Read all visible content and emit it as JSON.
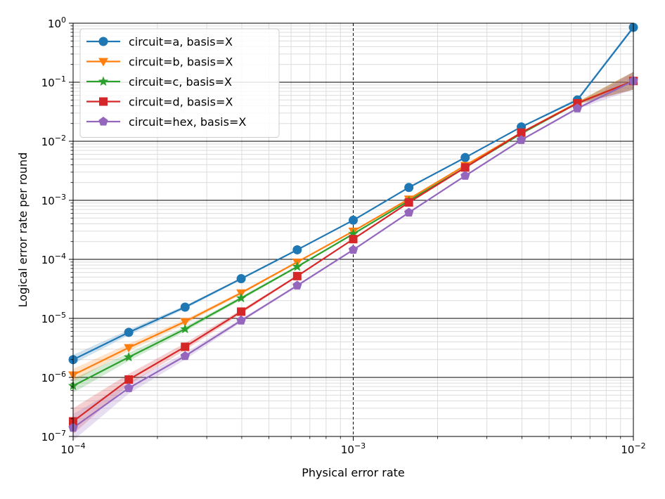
{
  "chart_data": {
    "type": "line",
    "xlabel": "Physical error rate",
    "ylabel": "Logical error rate per round",
    "x_scale": "log",
    "y_scale": "log",
    "xlim": [
      0.0001,
      0.01
    ],
    "ylim": [
      1e-07,
      1
    ],
    "x_major_ticks": [
      {
        "value": 0.0001,
        "base": "10",
        "exp": "−4"
      },
      {
        "value": 0.001,
        "base": "10",
        "exp": "−3"
      },
      {
        "value": 0.01,
        "base": "10",
        "exp": "−2"
      }
    ],
    "y_major_ticks": [
      {
        "value": 1e-07,
        "base": "10",
        "exp": "−7"
      },
      {
        "value": 1e-06,
        "base": "10",
        "exp": "−6"
      },
      {
        "value": 1e-05,
        "base": "10",
        "exp": "−5"
      },
      {
        "value": 0.0001,
        "base": "10",
        "exp": "−4"
      },
      {
        "value": 0.001,
        "base": "10",
        "exp": "−3"
      },
      {
        "value": 0.01,
        "base": "10",
        "exp": "−2"
      },
      {
        "value": 0.1,
        "base": "10",
        "exp": "−1"
      },
      {
        "value": 1,
        "base": "10",
        "exp": "0"
      }
    ],
    "grid": "major and minor",
    "vline_x": 0.001,
    "legend_position": "upper-left",
    "x": [
      0.0001,
      0.000158,
      0.000251,
      0.000398,
      0.000631,
      0.001,
      0.00158,
      0.00251,
      0.00398,
      0.00631,
      0.01
    ],
    "series": [
      {
        "name": "circuit=a, basis=X",
        "color": "#1f77b4",
        "marker": "circle",
        "values": [
          2e-06,
          5.8e-06,
          1.55e-05,
          4.7e-05,
          0.000145,
          0.00046,
          0.00165,
          0.0053,
          0.0175,
          0.05,
          0.85
        ],
        "band_low": [
          1.7e-06,
          5.2e-06,
          1.45e-05,
          4.5e-05,
          0.00014,
          0.00045,
          0.00162,
          0.0052,
          0.0172,
          0.048,
          0.8
        ],
        "band_high": [
          2.4e-06,
          6.4e-06,
          1.65e-05,
          4.9e-05,
          0.00015,
          0.00047,
          0.00168,
          0.0054,
          0.0178,
          0.054,
          0.92
        ]
      },
      {
        "name": "circuit=b, basis=X",
        "color": "#ff7f0e",
        "marker": "triangle-down",
        "values": [
          1.1e-06,
          3.2e-06,
          8.8e-06,
          2.7e-05,
          9e-05,
          0.0003,
          0.00105,
          0.0039,
          0.014,
          0.045,
          0.105
        ],
        "band_low": [
          8.5e-07,
          2.8e-06,
          8e-06,
          2.55e-05,
          8.7e-05,
          0.00029,
          0.00102,
          0.0038,
          0.0137,
          0.043,
          0.075
        ],
        "band_high": [
          1.4e-06,
          3.7e-06,
          9.6e-06,
          2.85e-05,
          9.3e-05,
          0.00031,
          0.00108,
          0.004,
          0.0143,
          0.047,
          0.15
        ]
      },
      {
        "name": "circuit=c, basis=X",
        "color": "#2ca02c",
        "marker": "star",
        "values": [
          7.2e-07,
          2.2e-06,
          6.6e-06,
          2.2e-05,
          7.5e-05,
          0.00027,
          0.00098,
          0.0036,
          0.0135,
          0.044,
          0.105
        ],
        "band_low": [
          5.5e-07,
          1.9e-06,
          6e-06,
          2.05e-05,
          7.2e-05,
          0.00026,
          0.00096,
          0.0035,
          0.0132,
          0.042,
          0.075
        ],
        "band_high": [
          9.5e-07,
          2.6e-06,
          7.2e-06,
          2.35e-05,
          7.8e-05,
          0.00028,
          0.001,
          0.0037,
          0.0138,
          0.046,
          0.15
        ]
      },
      {
        "name": "circuit=d, basis=X",
        "color": "#d62728",
        "marker": "square",
        "values": [
          1.8e-07,
          9.2e-07,
          3.3e-06,
          1.3e-05,
          5.2e-05,
          0.00022,
          0.00092,
          0.0036,
          0.014,
          0.044,
          0.105
        ],
        "band_low": [
          1.1e-07,
          7.5e-07,
          2.9e-06,
          1.2e-05,
          5e-05,
          0.000215,
          0.0009,
          0.0035,
          0.0137,
          0.042,
          0.075
        ],
        "band_high": [
          3e-07,
          1.15e-06,
          3.8e-06,
          1.4e-05,
          5.4e-05,
          0.000225,
          0.00094,
          0.0037,
          0.0143,
          0.046,
          0.15
        ]
      },
      {
        "name": "circuit=hex, basis=X",
        "color": "#9467bd",
        "marker": "pentagon",
        "values": [
          1.4e-07,
          6.6e-07,
          2.3e-06,
          9.2e-06,
          3.6e-05,
          0.000145,
          0.00062,
          0.0026,
          0.0105,
          0.036,
          0.105
        ],
        "band_low": [
          8.5e-08,
          5.3e-07,
          2e-06,
          8.6e-06,
          3.45e-05,
          0.00014,
          0.00061,
          0.00255,
          0.0103,
          0.035,
          0.075
        ],
        "band_high": [
          2.4e-07,
          8.2e-07,
          2.6e-06,
          9.8e-06,
          3.75e-05,
          0.00015,
          0.00063,
          0.00265,
          0.0107,
          0.037,
          0.15
        ]
      }
    ]
  }
}
